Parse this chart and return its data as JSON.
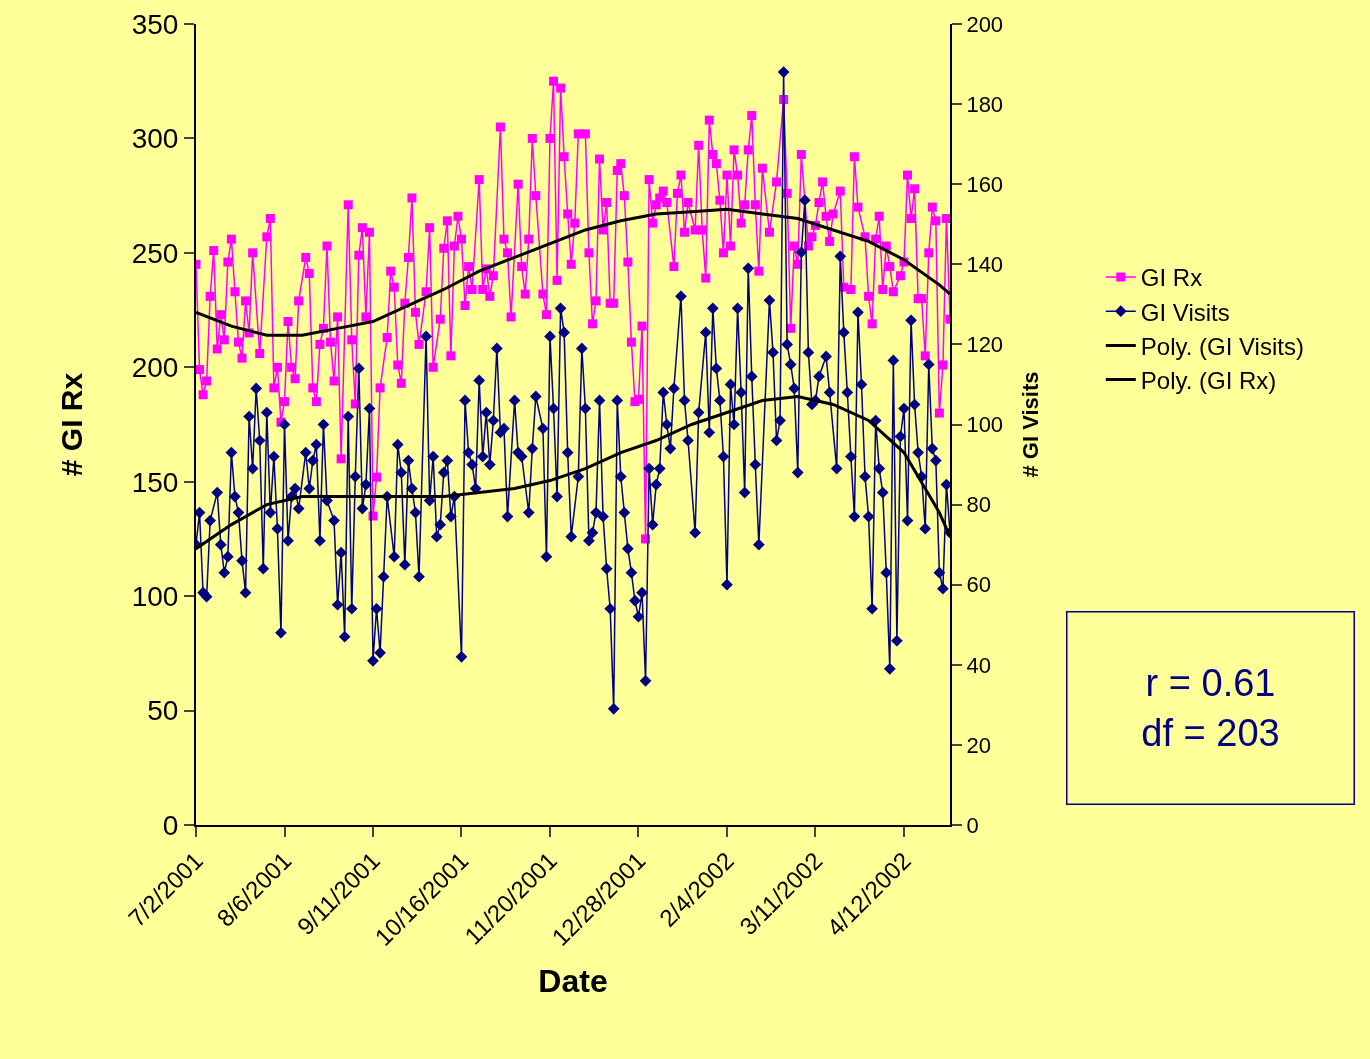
{
  "chart_data": {
    "type": "line",
    "xlabel": "Date",
    "ylabel": "# GI Rx",
    "y2label": "# GI Visits",
    "categories": [
      "7/2/2001",
      null,
      null,
      null,
      null,
      null,
      null,
      null,
      null,
      null,
      null,
      null,
      null,
      null,
      null,
      null,
      null,
      null,
      null,
      null,
      null,
      null,
      null,
      null,
      null,
      "8/6/2001",
      null,
      null,
      null,
      null,
      null,
      null,
      null,
      null,
      null,
      null,
      null,
      null,
      null,
      null,
      null,
      null,
      null,
      null,
      null,
      null,
      null,
      null,
      null,
      null,
      "9/11/2001",
      null,
      null,
      null,
      null,
      null,
      null,
      null,
      null,
      null,
      null,
      null,
      null,
      null,
      null,
      null,
      null,
      null,
      null,
      null,
      null,
      null,
      null,
      null,
      null,
      "10/16/2001",
      null,
      null,
      null,
      null,
      null,
      null,
      null,
      null,
      null,
      null,
      null,
      null,
      null,
      null,
      null,
      null,
      null,
      null,
      null,
      null,
      null,
      null,
      null,
      null,
      "11/20/2001",
      null,
      null,
      null,
      null,
      null,
      null,
      null,
      null,
      null,
      null,
      null,
      null,
      null,
      null,
      null,
      null,
      null,
      null,
      null,
      null,
      null,
      null,
      null,
      null,
      "12/28/2001",
      null,
      null,
      null,
      null,
      null,
      null,
      null,
      null,
      null,
      null,
      null,
      null,
      null,
      null,
      null,
      null,
      null,
      null,
      null,
      null,
      null,
      null,
      null,
      null,
      "2/4/2002",
      null,
      null,
      null,
      null,
      null,
      null,
      null,
      null,
      null,
      null,
      null,
      null,
      null,
      null,
      null,
      null,
      null,
      null,
      null,
      null,
      null,
      null,
      null,
      null,
      "3/11/2002",
      null,
      null,
      null,
      null,
      null,
      null,
      null,
      null,
      null,
      null,
      null,
      null,
      null,
      null,
      null,
      null,
      null,
      null,
      null,
      null,
      null,
      null,
      null,
      null,
      "4/12/2002",
      null,
      null,
      null,
      null,
      null,
      null,
      null,
      null,
      null,
      null,
      null,
      null,
      null
    ],
    "ylim": [
      0,
      350
    ],
    "yticks": [
      0,
      50,
      100,
      150,
      200,
      250,
      300,
      350
    ],
    "y2lim": [
      0,
      200
    ],
    "y2ticks": [
      0,
      20,
      40,
      60,
      80,
      100,
      120,
      140,
      160,
      180,
      200
    ],
    "grid": false,
    "legend": "right",
    "annotations": [
      "r = 0.61\ndf = 203"
    ],
    "series": [
      {
        "name": "GI Rx",
        "color": "#ff00ff",
        "marker": "square",
        "values": [
          245,
          199,
          188,
          194,
          231,
          251,
          208,
          223,
          212,
          246,
          256,
          233,
          211,
          204,
          229,
          215,
          250,
          null,
          206,
          null,
          257,
          265,
          191,
          200,
          176,
          185,
          220,
          200,
          195,
          229,
          null,
          248,
          241,
          191,
          185,
          210,
          217,
          253,
          211,
          194,
          222,
          160,
          null,
          271,
          212,
          184,
          249,
          261,
          222,
          259,
          135,
          152,
          191,
          null,
          213,
          242,
          235,
          201,
          193,
          228,
          248,
          274,
          224,
          210,
          null,
          233,
          261,
          200,
          null,
          221,
          252,
          264,
          205,
          253,
          266,
          256,
          227,
          244,
          234,
          null,
          282,
          234,
          243,
          231,
          240,
          null,
          305,
          256,
          250,
          222,
          null,
          280,
          244,
          232,
          256,
          300,
          275,
          null,
          232,
          223,
          300,
          325,
          238,
          322,
          292,
          267,
          245,
          263,
          302,
          null,
          302,
          250,
          219,
          229,
          291,
          260,
          272,
          228,
          228,
          286,
          289,
          275,
          246,
          211,
          185,
          186,
          218,
          125,
          282,
          263,
          271,
          274,
          277,
          272,
          null,
          244,
          276,
          284,
          259,
          272,
          null,
          260,
          297,
          260,
          239,
          308,
          293,
          289,
          273,
          250,
          284,
          253,
          295,
          284,
          263,
          271,
          295,
          310,
          271,
          242,
          287,
          null,
          259,
          null,
          281,
          null,
          317,
          276,
          217,
          253,
          245,
          293,
          null,
          253,
          257,
          262,
          272,
          281,
          266,
          255,
          267,
          null,
          277,
          235,
          null,
          234,
          292,
          270,
          null,
          257,
          231,
          219,
          256,
          266,
          234,
          253,
          244,
          233,
          null,
          240,
          246,
          284,
          265,
          278,
          230,
          230,
          205,
          250,
          270,
          264,
          180,
          201,
          265,
          221
        ]
      },
      {
        "name": "GI Visits",
        "color": "#000080",
        "marker": "diamond",
        "axis": "y2",
        "values": [
          70,
          78,
          58,
          57,
          76,
          null,
          83,
          70,
          63,
          67,
          93,
          82,
          78,
          66,
          58,
          102,
          89,
          109,
          96,
          64,
          103,
          78,
          92,
          74,
          48,
          100,
          71,
          82,
          84,
          79,
          null,
          93,
          84,
          91,
          95,
          71,
          100,
          81,
          null,
          76,
          55,
          68,
          47,
          102,
          54,
          87,
          114,
          79,
          85,
          104,
          41,
          54,
          43,
          62,
          82,
          null,
          67,
          95,
          88,
          65,
          91,
          84,
          78,
          62,
          null,
          122,
          81,
          92,
          72,
          75,
          88,
          91,
          77,
          82,
          null,
          42,
          106,
          93,
          90,
          84,
          111,
          92,
          103,
          90,
          101,
          119,
          98,
          99,
          77,
          null,
          106,
          93,
          92,
          null,
          78,
          94,
          107,
          null,
          99,
          67,
          122,
          104,
          82,
          129,
          123,
          93,
          72,
          null,
          87,
          119,
          104,
          71,
          73,
          78,
          106,
          77,
          64,
          54,
          29,
          106,
          87,
          78,
          69,
          63,
          56,
          52,
          58,
          36,
          89,
          75,
          85,
          89,
          108,
          100,
          94,
          109,
          null,
          132,
          106,
          96,
          null,
          73,
          103,
          null,
          123,
          98,
          129,
          114,
          106,
          92,
          60,
          110,
          100,
          129,
          108,
          83,
          139,
          112,
          90,
          70,
          null,
          null,
          131,
          118,
          96,
          101,
          188,
          120,
          115,
          109,
          88,
          143,
          156,
          118,
          105,
          106,
          112,
          null,
          117,
          108,
          null,
          89,
          142,
          123,
          108,
          92,
          77,
          128,
          110,
          87,
          77,
          54,
          101,
          89,
          83,
          63,
          39,
          116,
          46,
          97,
          104,
          76,
          126,
          105,
          93,
          87,
          74,
          115,
          94,
          91,
          63,
          59,
          85,
          73
        ]
      },
      {
        "name": "Poly. (GI Visits)",
        "color": "#000000",
        "marker": "none",
        "axis": "y2",
        "values": [
          69,
          null,
          null,
          null,
          null,
          null,
          null,
          null,
          null,
          null,
          75,
          null,
          null,
          null,
          null,
          null,
          null,
          null,
          null,
          null,
          80,
          null,
          null,
          null,
          null,
          null,
          null,
          null,
          null,
          null,
          82,
          null,
          null,
          null,
          null,
          null,
          null,
          null,
          null,
          null,
          82,
          null,
          null,
          null,
          null,
          null,
          null,
          null,
          null,
          null,
          82,
          null,
          null,
          null,
          null,
          null,
          null,
          null,
          null,
          null,
          82,
          null,
          null,
          null,
          null,
          null,
          null,
          null,
          null,
          null,
          82,
          null,
          null,
          null,
          null,
          null,
          null,
          null,
          null,
          null,
          83,
          null,
          null,
          null,
          null,
          null,
          null,
          null,
          null,
          null,
          84,
          null,
          null,
          null,
          null,
          null,
          null,
          null,
          null,
          null,
          86,
          null,
          null,
          null,
          null,
          null,
          null,
          null,
          null,
          null,
          89,
          null,
          null,
          null,
          null,
          null,
          null,
          null,
          null,
          null,
          93,
          null,
          null,
          null,
          null,
          null,
          null,
          null,
          null,
          null,
          96,
          null,
          null,
          null,
          null,
          null,
          null,
          null,
          null,
          null,
          100,
          null,
          null,
          null,
          null,
          null,
          null,
          null,
          null,
          null,
          103,
          null,
          null,
          null,
          null,
          null,
          null,
          null,
          null,
          null,
          106,
          null,
          null,
          null,
          null,
          null,
          null,
          null,
          null,
          null,
          107,
          null,
          null,
          null,
          null,
          null,
          null,
          null,
          null,
          null,
          105,
          null,
          null,
          null,
          null,
          null,
          null,
          null,
          null,
          null,
          101,
          null,
          null,
          null,
          null,
          null,
          null,
          null,
          null,
          null,
          93,
          null,
          null,
          null,
          null,
          null,
          null,
          null,
          null,
          null,
          78,
          null,
          null,
          72
        ]
      },
      {
        "name": "Poly. (GI Rx)",
        "color": "#000000",
        "marker": "none",
        "values": [
          224,
          null,
          null,
          null,
          null,
          null,
          null,
          null,
          null,
          null,
          218,
          null,
          null,
          null,
          null,
          null,
          null,
          null,
          null,
          null,
          214,
          null,
          null,
          null,
          null,
          null,
          null,
          null,
          null,
          null,
          214,
          null,
          null,
          null,
          null,
          null,
          null,
          null,
          null,
          null,
          217,
          null,
          null,
          null,
          null,
          null,
          null,
          null,
          null,
          null,
          220,
          null,
          null,
          null,
          null,
          null,
          null,
          null,
          null,
          null,
          227,
          null,
          null,
          null,
          null,
          null,
          null,
          null,
          null,
          null,
          234,
          null,
          null,
          null,
          null,
          null,
          null,
          null,
          null,
          null,
          242,
          null,
          null,
          null,
          null,
          null,
          null,
          null,
          null,
          null,
          248,
          null,
          null,
          null,
          null,
          null,
          null,
          null,
          null,
          null,
          254,
          null,
          null,
          null,
          null,
          null,
          null,
          null,
          null,
          null,
          260,
          null,
          null,
          null,
          null,
          null,
          null,
          null,
          null,
          null,
          264,
          null,
          null,
          null,
          null,
          null,
          null,
          null,
          null,
          null,
          267,
          null,
          null,
          null,
          null,
          null,
          null,
          null,
          null,
          null,
          268,
          null,
          null,
          null,
          null,
          null,
          null,
          null,
          null,
          null,
          269,
          null,
          null,
          null,
          null,
          null,
          null,
          null,
          null,
          null,
          267,
          null,
          null,
          null,
          null,
          null,
          null,
          null,
          null,
          null,
          265,
          null,
          null,
          null,
          null,
          null,
          null,
          null,
          null,
          null,
          260,
          null,
          null,
          null,
          null,
          null,
          null,
          null,
          null,
          null,
          255,
          null,
          null,
          null,
          null,
          null,
          null,
          null,
          null,
          null,
          247,
          null,
          null,
          null,
          null,
          null,
          null,
          null,
          null,
          null,
          236,
          null,
          null,
          232
        ]
      }
    ]
  }
}
